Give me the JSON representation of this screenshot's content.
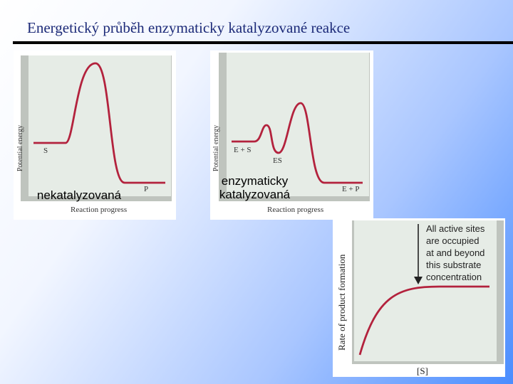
{
  "slide": {
    "title": "Energetický průběh enzymaticky katalyzované reakce"
  },
  "panel_uncatalyzed": {
    "ylabel": "Potential energy",
    "xlabel": "Reaction progress",
    "start_label": "S",
    "end_label": "P",
    "overlay_label": "nekatalyzovaná",
    "curve_color": "#b3223d"
  },
  "panel_catalyzed": {
    "ylabel": "Potential energy",
    "xlabel": "Reaction progress",
    "start_label": "E + S",
    "intermediate_label": "ES",
    "end_label": "E + P",
    "overlay_label_line1": "enzymaticky",
    "overlay_label_line2": "katalyzovaná",
    "curve_color": "#b3223d"
  },
  "panel_saturation": {
    "ylabel": "Rate of product formation",
    "xlabel": "[S]",
    "annotation_lines": [
      "All active sites",
      "are occupied",
      "at and beyond",
      "this substrate",
      "concentration"
    ],
    "curve_color": "#b3223d"
  }
}
